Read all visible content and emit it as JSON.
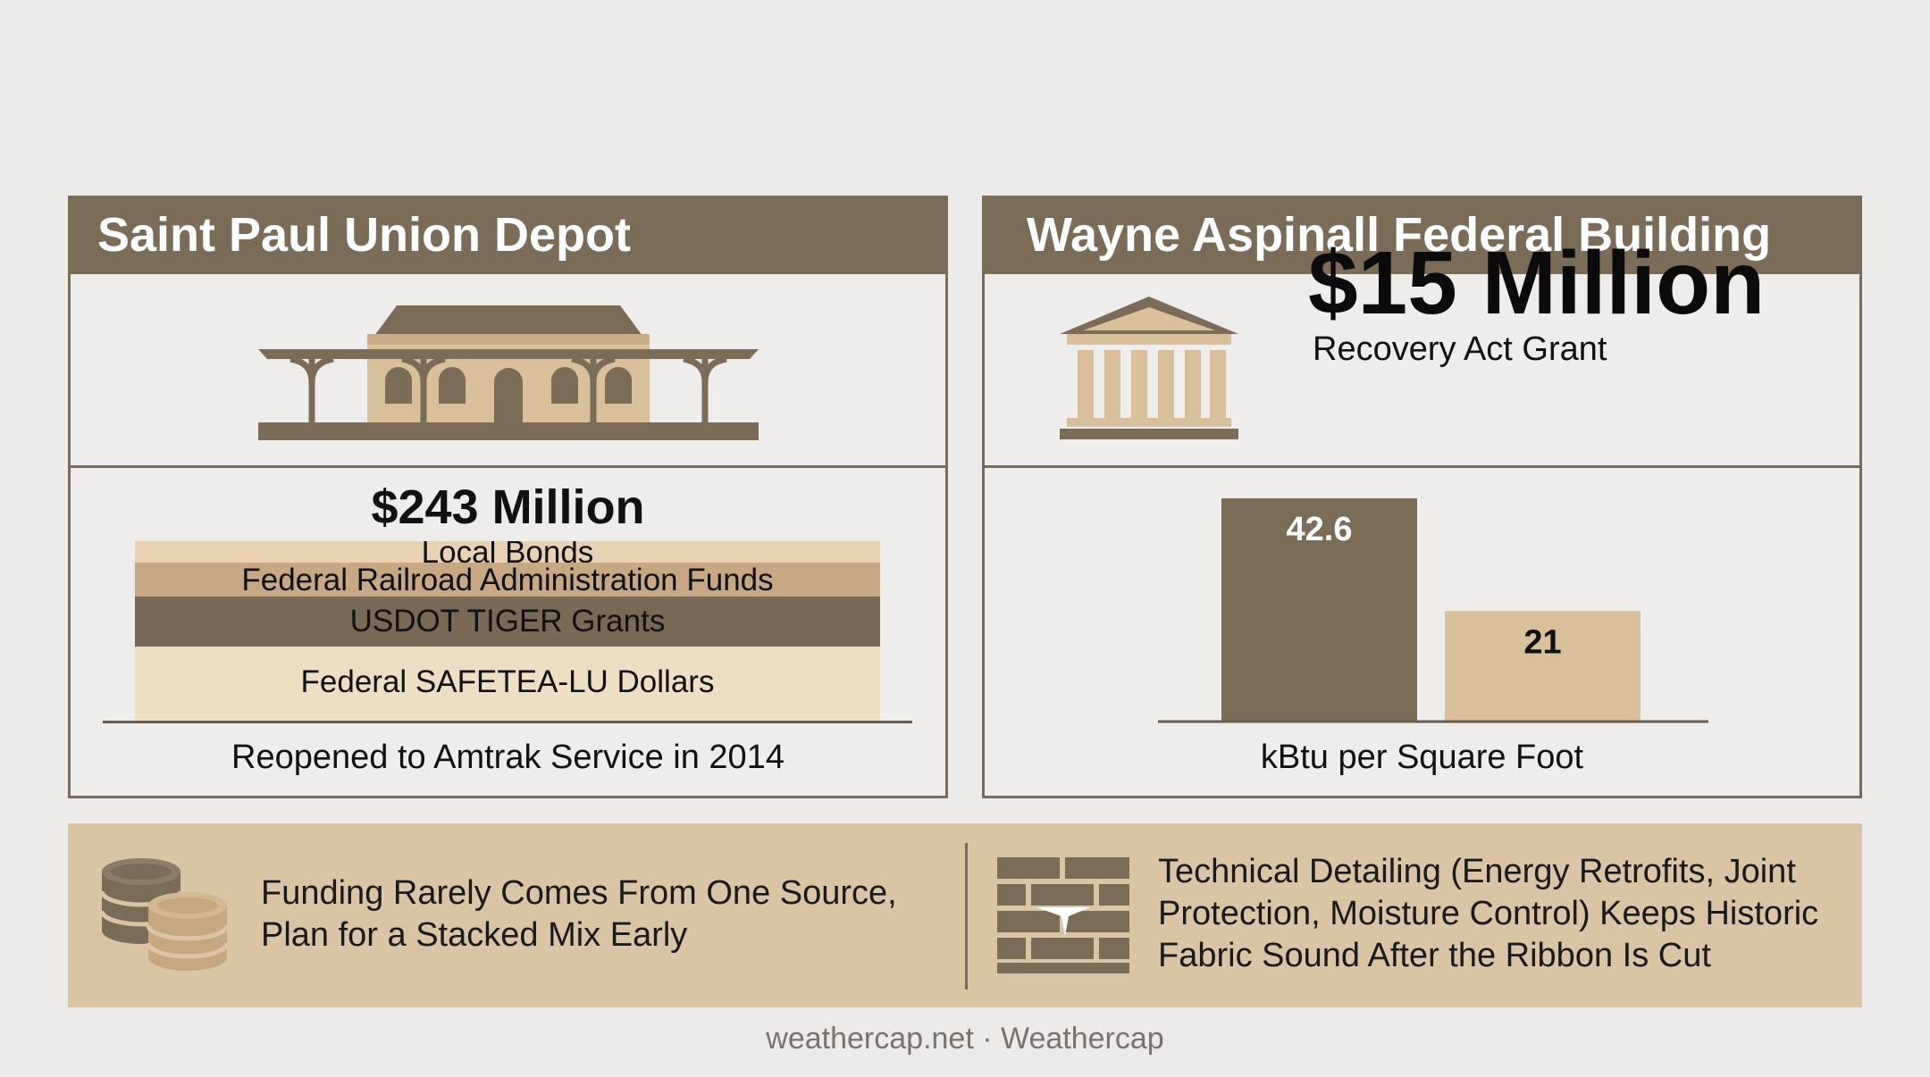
{
  "left_panel": {
    "title": "Saint Paul Union Depot",
    "icon": "train-station-icon",
    "amount": "$243 Million",
    "funding_layers": [
      {
        "label": "Local Bonds",
        "color": "#e8d2b3"
      },
      {
        "label": "Federal Railroad Administration Funds",
        "color": "#c7a884"
      },
      {
        "label": "USDOT TIGER Grants",
        "color": "#786856"
      },
      {
        "label": "Federal SAFETEA-LU Dollars",
        "color": "#ecdfc4"
      }
    ],
    "caption": "Reopened to Amtrak Service in 2014"
  },
  "right_panel": {
    "title": "Wayne Aspinall Federal Building",
    "icon": "federal-building-icon",
    "amount": "$15 Million",
    "grant_label": "Recovery Act Grant",
    "caption": "kBtu per Square Foot"
  },
  "chart_data": {
    "type": "bar",
    "categories": [
      "",
      ""
    ],
    "values": [
      42.6,
      21
    ],
    "data_labels": [
      "42.6",
      "21"
    ],
    "colors": [
      "#7b6c58",
      "#d8c09c"
    ],
    "xlabel": "kBtu per Square Foot",
    "ylabel": "",
    "ylim": [
      0,
      45
    ],
    "grid": false
  },
  "banner": {
    "left_icon": "coin-stack-icon",
    "left_text": "Funding Rarely Comes From One Source, Plan for a Stacked Mix Early",
    "right_icon": "brick-wall-icon",
    "right_text": "Technical Detailing (Energy Retrofits, Joint Protection, Moisture Control) Keeps Historic Fabric Sound After the Ribbon Is Cut"
  },
  "footer": "weathercap.net · Weathercap"
}
